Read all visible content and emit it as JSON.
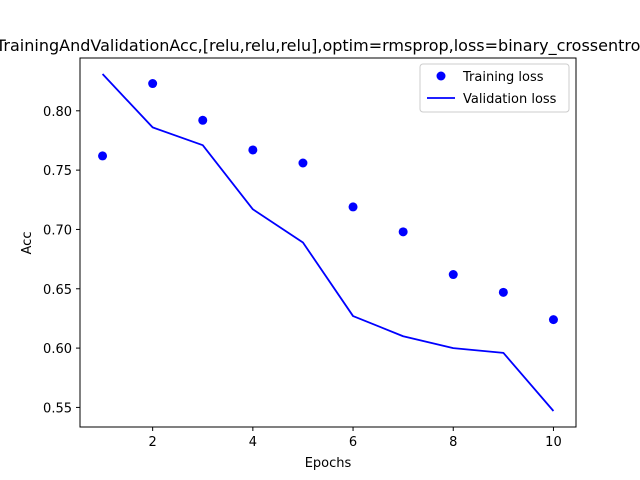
{
  "chart_data": {
    "type": "line",
    "title": "TrainingAndValidationAcc,[relu,relu,relu],optim=rmsprop,loss=binary_crossentropy",
    "xlabel": "Epochs",
    "ylabel": "Acc",
    "xlim": [
      0.55,
      10.45
    ],
    "ylim": [
      0.5335,
      0.8445
    ],
    "x_ticks": [
      2,
      4,
      6,
      8,
      10
    ],
    "y_ticks": [
      0.55,
      0.6,
      0.65,
      0.7,
      0.75,
      0.8
    ],
    "x_tick_labels": [
      "2",
      "4",
      "6",
      "8",
      "10"
    ],
    "y_tick_labels": [
      "0.55",
      "0.60",
      "0.65",
      "0.70",
      "0.75",
      "0.80"
    ],
    "grid": false,
    "legend_position": "top-right",
    "series": [
      {
        "name": "Training loss",
        "style": "markers",
        "color": "#0000ff",
        "x": [
          1,
          2,
          3,
          4,
          5,
          6,
          7,
          8,
          9,
          10
        ],
        "values": [
          0.762,
          0.823,
          0.792,
          0.767,
          0.756,
          0.719,
          0.698,
          0.662,
          0.647,
          0.624
        ]
      },
      {
        "name": "Validation loss",
        "style": "line",
        "color": "#0000ff",
        "x": [
          1,
          2,
          3,
          4,
          5,
          6,
          7,
          8,
          9,
          10
        ],
        "values": [
          0.831,
          0.786,
          0.771,
          0.717,
          0.689,
          0.627,
          0.61,
          0.6,
          0.596,
          0.547
        ]
      }
    ]
  }
}
